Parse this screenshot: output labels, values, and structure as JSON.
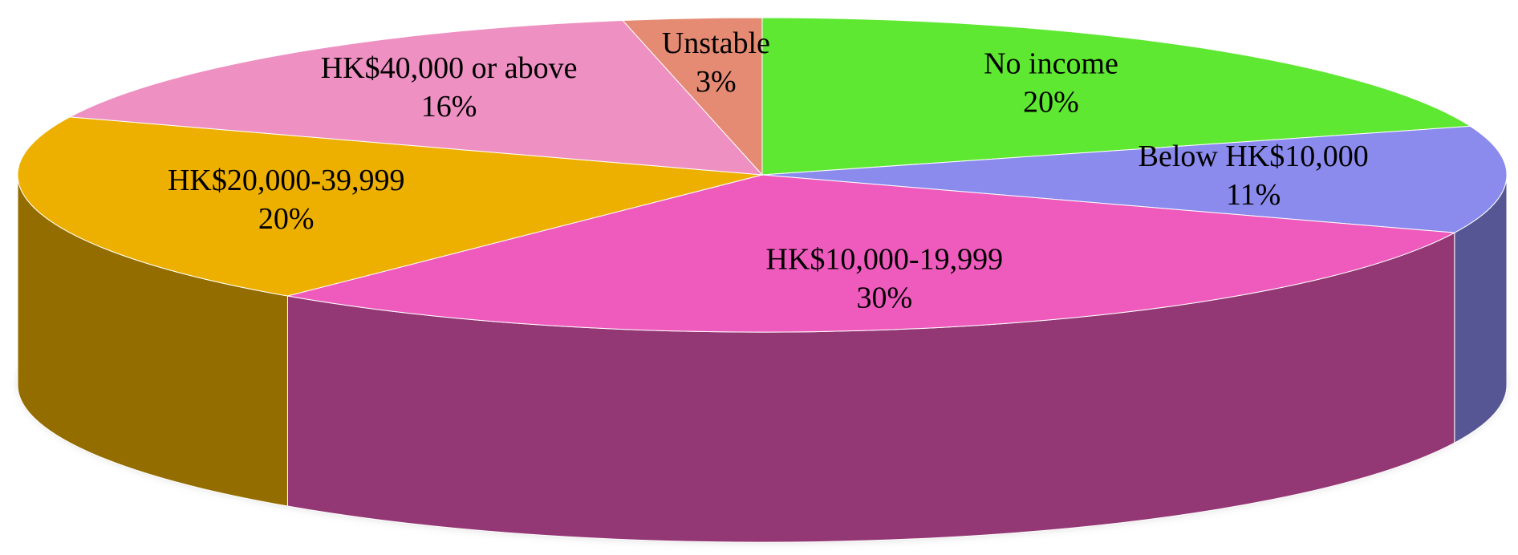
{
  "chart_data": {
    "type": "pie",
    "categories": [
      "No income",
      "Below HK$10,000",
      "HK$10,000-19,999",
      "HK$20,000-39,999",
      "HK$40,000 or above",
      "Unstable"
    ],
    "values": [
      20,
      11,
      30,
      20,
      16,
      3
    ],
    "value_labels": [
      "20%",
      "11%",
      "30%",
      "20%",
      "16%",
      "3%"
    ],
    "colors": [
      "#5ee831",
      "#8b8bee",
      "#ee5bbd",
      "#edb000",
      "#ee90c1",
      "#e58a73"
    ]
  }
}
